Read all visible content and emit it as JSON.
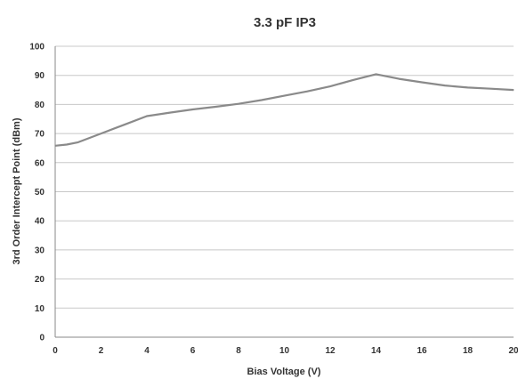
{
  "chart_data": {
    "type": "line",
    "title": "3.3 pF IP3",
    "xlabel": "Bias Voltage (V)",
    "ylabel": "3rd Order Intercept Point (dBm)",
    "xlim": [
      0,
      20
    ],
    "ylim": [
      0,
      100
    ],
    "x_ticks": [
      0,
      2,
      4,
      6,
      8,
      10,
      12,
      14,
      16,
      18,
      20
    ],
    "y_ticks": [
      0,
      10,
      20,
      30,
      40,
      50,
      60,
      70,
      80,
      90,
      100
    ],
    "grid": "horizontal",
    "series": [
      {
        "x": [
          0,
          0.5,
          1,
          2,
          3,
          4,
          5,
          6,
          7,
          8,
          9,
          10,
          11,
          12,
          13,
          14,
          15,
          16,
          17,
          18,
          19,
          20
        ],
        "values": [
          65.8,
          66.2,
          67,
          70,
          73,
          76,
          77.2,
          78.3,
          79.2,
          80.2,
          81.5,
          83,
          84.5,
          86.2,
          88.4,
          90.4,
          88.8,
          87.6,
          86.5,
          85.8,
          85.4,
          85
        ]
      }
    ]
  },
  "colors": {
    "line": "#8a8a8a",
    "grid": "#c8c8c8",
    "axis": "#888888",
    "text": "#333333"
  }
}
